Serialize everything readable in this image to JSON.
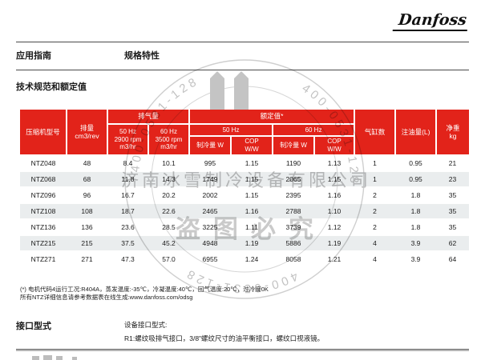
{
  "page": {
    "brand": "Danfoss",
    "doc_type": "应用指南",
    "doc_subtitle": "规格特性",
    "section_title": "技术规范和额定值"
  },
  "table": {
    "headers": {
      "model": "压缩机型号",
      "displacement": "排量\ncm3/rev",
      "discharge_group": "排气量",
      "discharge_50": "50 Hz\n2900 rpm\nm3/hr",
      "discharge_60": "60 Hz\n3500 rpm\nm3/hr",
      "rated_group": "额定值*",
      "hz50": "50 Hz",
      "hz60": "60 Hz",
      "capacity": "制冷量 W",
      "cop": "COP\nW/W",
      "cylinders": "气缸数",
      "oil": "注油量(L)",
      "weight": "净重\nkg"
    },
    "rows": [
      [
        "NTZ048",
        "48",
        "8.4",
        "10.1",
        "995",
        "1.15",
        "1190",
        "1.13",
        "1",
        "0.95",
        "21"
      ],
      [
        "NTZ068",
        "68",
        "11.8",
        "14.3",
        "1749",
        "1.15",
        "2065",
        "1.15",
        "1",
        "0.95",
        "23"
      ],
      [
        "NTZ096",
        "96",
        "16.7",
        "20.2",
        "2002",
        "1.15",
        "2395",
        "1.16",
        "2",
        "1.8",
        "35"
      ],
      [
        "NTZ108",
        "108",
        "18.7",
        "22.6",
        "2465",
        "1.16",
        "2788",
        "1.10",
        "2",
        "1.8",
        "35"
      ],
      [
        "NTZ136",
        "136",
        "23.6",
        "28.5",
        "3225",
        "1.11",
        "3739",
        "1.12",
        "2",
        "1.8",
        "35"
      ],
      [
        "NTZ215",
        "215",
        "37.5",
        "45.2",
        "4948",
        "1.19",
        "5886",
        "1.19",
        "4",
        "3.9",
        "62"
      ],
      [
        "NTZ271",
        "271",
        "47.3",
        "57.0",
        "6955",
        "1.24",
        "8058",
        "1.21",
        "4",
        "3.9",
        "64"
      ]
    ]
  },
  "footnotes": {
    "line1": "(*) 电机代码4运行工况:R404A，蒸发温度:-35℃，冷凝温度:40℃，回气温度:20℃，过冷度0K",
    "line2": "所有NTZ详细信息请参考数据表在线生成:www.danfoss.com/odsg"
  },
  "connections": {
    "title": "接口型式",
    "label": "设备接口型式:",
    "detail": "R1:螺纹吸排气接口，3/8\"螺纹尺寸的油平衡接口，螺纹口视液镜。"
  },
  "watermark": {
    "company": "济南冰雪制冷设备有限公司",
    "slogan": "盗图必究",
    "phone": "400-0531-128"
  },
  "colors": {
    "header_red": "#e2231a",
    "stripe": "#eaedee",
    "watermark_gray": "#8f8f8f"
  }
}
